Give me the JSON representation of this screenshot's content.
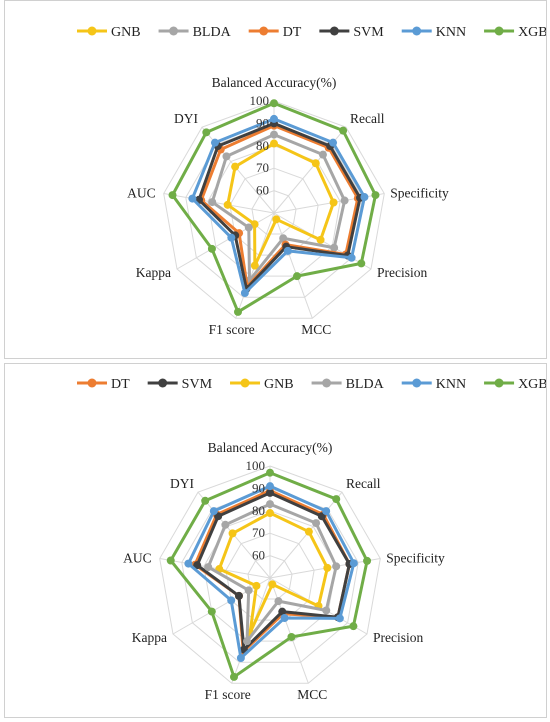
{
  "chart_data": [
    {
      "type": "radar",
      "axes": [
        "Balanced Accuracy(%)",
        "Recall",
        "Specificity",
        "Precision",
        "MCC",
        "F1 score",
        "Kappa",
        "AUC",
        "DYI"
      ],
      "range": [
        50,
        100
      ],
      "ticks": [
        "60",
        "70",
        "80",
        "90",
        "100"
      ],
      "grid": true,
      "legend_position": "top",
      "series": [
        {
          "name": "GNB",
          "color": "#f5c518",
          "values": [
            81,
            79,
            77,
            74,
            53,
            75,
            60,
            71,
            77
          ]
        },
        {
          "name": "BLDA",
          "color": "#a6a6a6",
          "values": [
            85,
            84,
            82,
            81,
            62,
            82,
            63,
            78,
            83
          ]
        },
        {
          "name": "DT",
          "color": "#ed7d31",
          "values": [
            89,
            88,
            88,
            87,
            65,
            85,
            68,
            83,
            87
          ]
        },
        {
          "name": "SVM",
          "color": "#404040",
          "values": [
            90,
            89,
            89,
            88,
            66,
            86,
            70,
            84,
            89
          ]
        },
        {
          "name": "KNN",
          "color": "#5b9bd5",
          "values": [
            92,
            91,
            91,
            90,
            68,
            88,
            72,
            87,
            91
          ]
        },
        {
          "name": "XGB",
          "color": "#70ad47",
          "values": [
            99,
            98,
            96,
            95,
            80,
            97,
            82,
            96,
            97
          ]
        }
      ]
    },
    {
      "type": "radar",
      "axes": [
        "Balanced Accuracy(%)",
        "Recall",
        "Specificity",
        "Precision",
        "MCC",
        "F1 score",
        "Kappa",
        "AUC",
        "DYI"
      ],
      "range": [
        50,
        100
      ],
      "ticks": [
        "60",
        "70",
        "80",
        "90",
        "100"
      ],
      "grid": true,
      "legend_position": "top",
      "series": [
        {
          "name": "DT",
          "color": "#ed7d31",
          "values": [
            89,
            87,
            86,
            85,
            67,
            85,
            66,
            84,
            87
          ]
        },
        {
          "name": "SVM",
          "color": "#404040",
          "values": [
            88,
            86,
            86,
            85,
            66,
            84,
            66,
            83,
            86
          ]
        },
        {
          "name": "GNB",
          "color": "#f5c518",
          "values": [
            79,
            77,
            76,
            75,
            53,
            76,
            57,
            73,
            76
          ]
        },
        {
          "name": "BLDA",
          "color": "#a6a6a6",
          "values": [
            83,
            82,
            80,
            79,
            61,
            80,
            61,
            78,
            81
          ]
        },
        {
          "name": "KNN",
          "color": "#5b9bd5",
          "values": [
            91,
            89,
            88,
            86,
            69,
            88,
            70,
            87,
            89
          ]
        },
        {
          "name": "XGB",
          "color": "#70ad47",
          "values": [
            97,
            96,
            94,
            93,
            78,
            97,
            80,
            95,
            95
          ]
        }
      ]
    }
  ]
}
